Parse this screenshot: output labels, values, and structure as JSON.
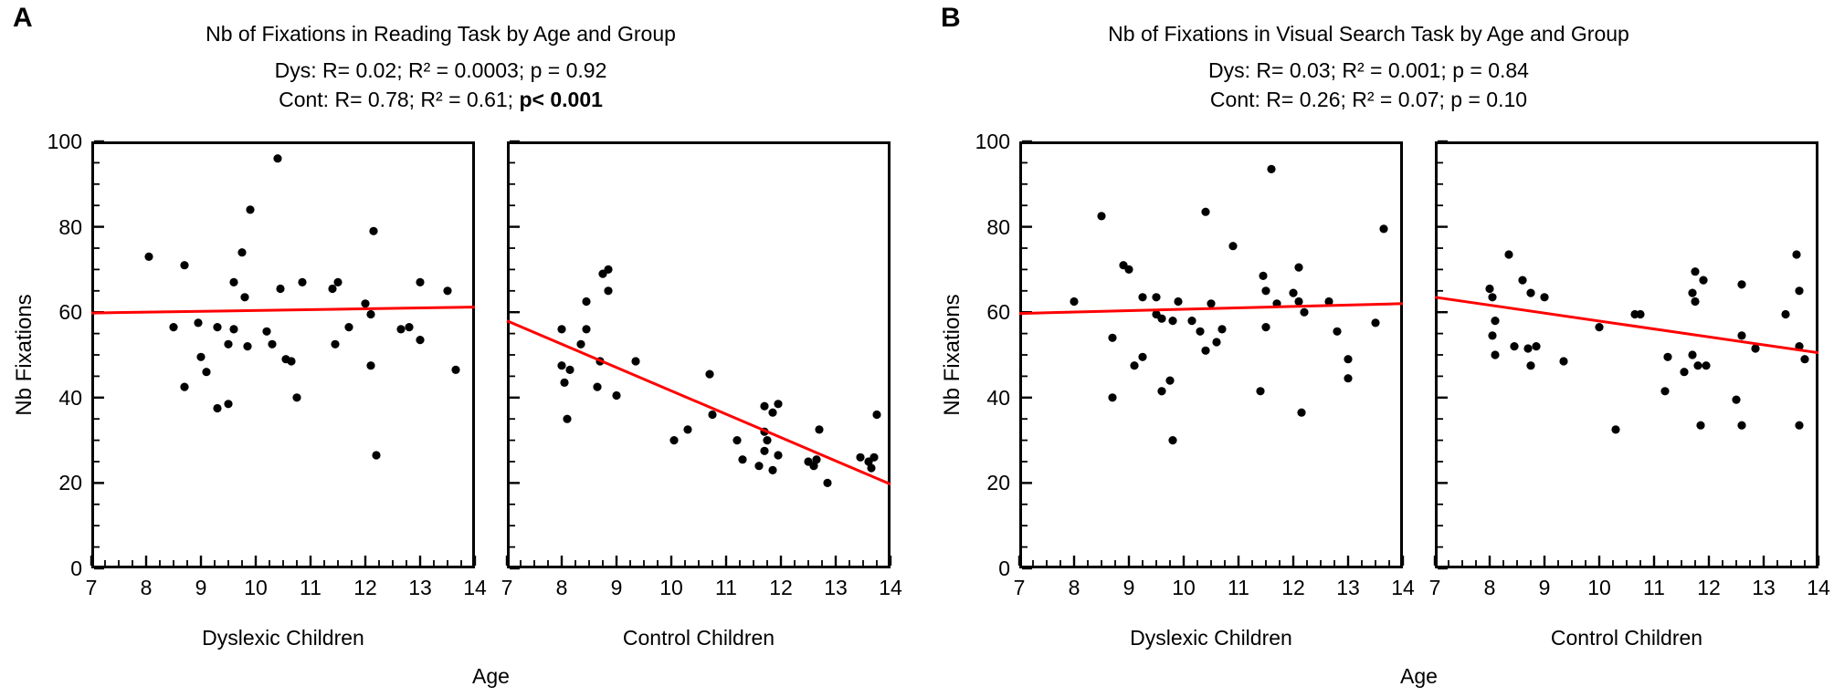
{
  "figure_background": "#ffffff",
  "marker_color": "#000000",
  "trend_color": "#ff0000",
  "axis_color": "#000000",
  "chart_data": [
    {
      "type": "scatter",
      "panel_label": "A",
      "title": "Nb of Fixations in Reading Task by Age and Group",
      "stats": {
        "dys": "Dys:  R= 0.02; R² = 0.0003; p = 0.92",
        "cont_prefix": "Cont: R= 0.78; R² = 0.61;  ",
        "cont_p": "p< 0.001",
        "cont_p_bold": true
      },
      "xlabel": "Age",
      "ylabel": "Nb Fixations",
      "xlim": [
        7,
        14
      ],
      "ylim": [
        0,
        100
      ],
      "x_ticks": [
        7,
        8,
        9,
        10,
        11,
        12,
        13,
        14
      ],
      "y_ticks": [
        0,
        20,
        40,
        60,
        80,
        100
      ],
      "x_minor_step": 0.25,
      "y_minor_step": 5,
      "subplots": [
        {
          "label": "Dyslexic Children",
          "trend": [
            [
              7,
              59.8
            ],
            [
              14,
              61.2
            ]
          ],
          "points": [
            [
              8.05,
              73
            ],
            [
              8.5,
              56.5
            ],
            [
              8.7,
              71
            ],
            [
              8.7,
              42.5
            ],
            [
              8.95,
              57.5
            ],
            [
              9.0,
              49.5
            ],
            [
              9.1,
              46
            ],
            [
              9.3,
              56.5
            ],
            [
              9.3,
              37.5
            ],
            [
              9.5,
              38.5
            ],
            [
              9.5,
              52.5
            ],
            [
              9.6,
              67
            ],
            [
              9.6,
              56
            ],
            [
              9.75,
              74
            ],
            [
              9.8,
              63.5
            ],
            [
              9.85,
              52
            ],
            [
              9.9,
              84
            ],
            [
              10.2,
              55.5
            ],
            [
              10.3,
              52.5
            ],
            [
              10.4,
              96
            ],
            [
              10.45,
              65.5
            ],
            [
              10.55,
              49
            ],
            [
              10.65,
              48.5
            ],
            [
              10.75,
              40
            ],
            [
              10.85,
              67
            ],
            [
              11.4,
              65.5
            ],
            [
              11.45,
              52.5
            ],
            [
              11.5,
              67
            ],
            [
              11.7,
              56.5
            ],
            [
              12.0,
              62
            ],
            [
              12.1,
              59.5
            ],
            [
              12.15,
              79
            ],
            [
              12.1,
              47.5
            ],
            [
              12.2,
              26.5
            ],
            [
              12.65,
              56
            ],
            [
              12.8,
              56.5
            ],
            [
              13.0,
              53.5
            ],
            [
              13.0,
              67
            ],
            [
              13.5,
              65
            ],
            [
              13.65,
              46.5
            ]
          ]
        },
        {
          "label": "Control Children",
          "trend": [
            [
              7,
              58
            ],
            [
              14,
              19.7
            ]
          ],
          "points": [
            [
              8.0,
              56
            ],
            [
              8.0,
              47.5
            ],
            [
              8.05,
              43.5
            ],
            [
              8.1,
              35
            ],
            [
              8.15,
              46.5
            ],
            [
              8.35,
              52.5
            ],
            [
              8.45,
              62.5
            ],
            [
              8.45,
              56
            ],
            [
              8.65,
              42.5
            ],
            [
              8.7,
              48.5
            ],
            [
              8.75,
              69
            ],
            [
              8.85,
              70
            ],
            [
              8.85,
              65
            ],
            [
              9.0,
              40.5
            ],
            [
              9.35,
              48.5
            ],
            [
              10.05,
              30
            ],
            [
              10.3,
              32.5
            ],
            [
              10.7,
              45.5
            ],
            [
              10.75,
              36
            ],
            [
              11.2,
              30
            ],
            [
              11.3,
              25.5
            ],
            [
              11.6,
              24
            ],
            [
              11.7,
              38
            ],
            [
              11.7,
              32
            ],
            [
              11.7,
              27.5
            ],
            [
              11.75,
              30
            ],
            [
              11.85,
              36.5
            ],
            [
              11.85,
              23
            ],
            [
              11.95,
              38.5
            ],
            [
              11.95,
              26.5
            ],
            [
              12.5,
              25
            ],
            [
              12.6,
              24
            ],
            [
              12.65,
              25.5
            ],
            [
              12.7,
              32.5
            ],
            [
              12.85,
              20
            ],
            [
              13.45,
              26
            ],
            [
              13.6,
              25
            ],
            [
              13.65,
              23.5
            ],
            [
              13.7,
              26
            ],
            [
              13.75,
              36
            ]
          ]
        }
      ]
    },
    {
      "type": "scatter",
      "panel_label": "B",
      "title": "Nb of Fixations in Visual Search Task by Age and Group",
      "stats": {
        "dys": "Dys:  R= 0.03; R² = 0.001; p = 0.84",
        "cont_prefix": "Cont: R= 0.26; R² = 0.07; ",
        "cont_p": "p = 0.10",
        "cont_p_bold": false
      },
      "xlabel": "Age",
      "ylabel": "Nb Fixations",
      "xlim": [
        7,
        14
      ],
      "ylim": [
        0,
        100
      ],
      "x_ticks": [
        7,
        8,
        9,
        10,
        11,
        12,
        13,
        14
      ],
      "y_ticks": [
        0,
        20,
        40,
        60,
        80,
        100
      ],
      "x_minor_step": 0.25,
      "y_minor_step": 5,
      "subplots": [
        {
          "label": "Dyslexic Children",
          "trend": [
            [
              7,
              59.7
            ],
            [
              14,
              62
            ]
          ],
          "points": [
            [
              8.0,
              62.5
            ],
            [
              8.5,
              82.5
            ],
            [
              8.7,
              54
            ],
            [
              8.7,
              40
            ],
            [
              8.9,
              71
            ],
            [
              9.0,
              70
            ],
            [
              9.1,
              47.5
            ],
            [
              9.25,
              49.5
            ],
            [
              9.25,
              63.5
            ],
            [
              9.5,
              63.5
            ],
            [
              9.5,
              59.5
            ],
            [
              9.6,
              58.5
            ],
            [
              9.6,
              41.5
            ],
            [
              9.75,
              44
            ],
            [
              9.8,
              58
            ],
            [
              9.8,
              30
            ],
            [
              9.9,
              62.5
            ],
            [
              10.15,
              58
            ],
            [
              10.3,
              55.5
            ],
            [
              10.4,
              83.5
            ],
            [
              10.4,
              51
            ],
            [
              10.5,
              62
            ],
            [
              10.6,
              53
            ],
            [
              10.7,
              56
            ],
            [
              10.9,
              75.5
            ],
            [
              11.4,
              41.5
            ],
            [
              11.45,
              68.5
            ],
            [
              11.5,
              65
            ],
            [
              11.5,
              56.5
            ],
            [
              11.6,
              93.5
            ],
            [
              11.7,
              62
            ],
            [
              12.0,
              64.5
            ],
            [
              12.1,
              70.5
            ],
            [
              12.1,
              62.5
            ],
            [
              12.15,
              36.5
            ],
            [
              12.2,
              60
            ],
            [
              12.65,
              62.5
            ],
            [
              12.8,
              55.5
            ],
            [
              13.0,
              49
            ],
            [
              13.0,
              44.5
            ],
            [
              13.5,
              57.5
            ],
            [
              13.65,
              79.5
            ]
          ]
        },
        {
          "label": "Control Children",
          "trend": [
            [
              7,
              63.5
            ],
            [
              14,
              50.5
            ]
          ],
          "points": [
            [
              8.0,
              65.5
            ],
            [
              8.05,
              63.5
            ],
            [
              8.05,
              54.5
            ],
            [
              8.1,
              58
            ],
            [
              8.1,
              50
            ],
            [
              8.35,
              73.5
            ],
            [
              8.45,
              52
            ],
            [
              8.6,
              67.5
            ],
            [
              8.7,
              51.5
            ],
            [
              8.75,
              64.5
            ],
            [
              8.75,
              47.5
            ],
            [
              8.85,
              52
            ],
            [
              9.0,
              63.5
            ],
            [
              9.35,
              48.5
            ],
            [
              10.0,
              56.5
            ],
            [
              10.3,
              32.5
            ],
            [
              10.65,
              59.5
            ],
            [
              10.75,
              59.5
            ],
            [
              11.2,
              41.5
            ],
            [
              11.25,
              49.5
            ],
            [
              11.55,
              46
            ],
            [
              11.7,
              64.5
            ],
            [
              11.7,
              50
            ],
            [
              11.75,
              69.5
            ],
            [
              11.75,
              62.5
            ],
            [
              11.8,
              47.5
            ],
            [
              11.85,
              33.5
            ],
            [
              11.9,
              67.5
            ],
            [
              11.95,
              47.5
            ],
            [
              12.5,
              39.5
            ],
            [
              12.6,
              66.5
            ],
            [
              12.6,
              54.5
            ],
            [
              12.6,
              33.5
            ],
            [
              12.85,
              51.5
            ],
            [
              13.4,
              59.5
            ],
            [
              13.6,
              73.5
            ],
            [
              13.65,
              65
            ],
            [
              13.65,
              52
            ],
            [
              13.65,
              33.5
            ],
            [
              13.75,
              49
            ]
          ]
        }
      ]
    }
  ]
}
